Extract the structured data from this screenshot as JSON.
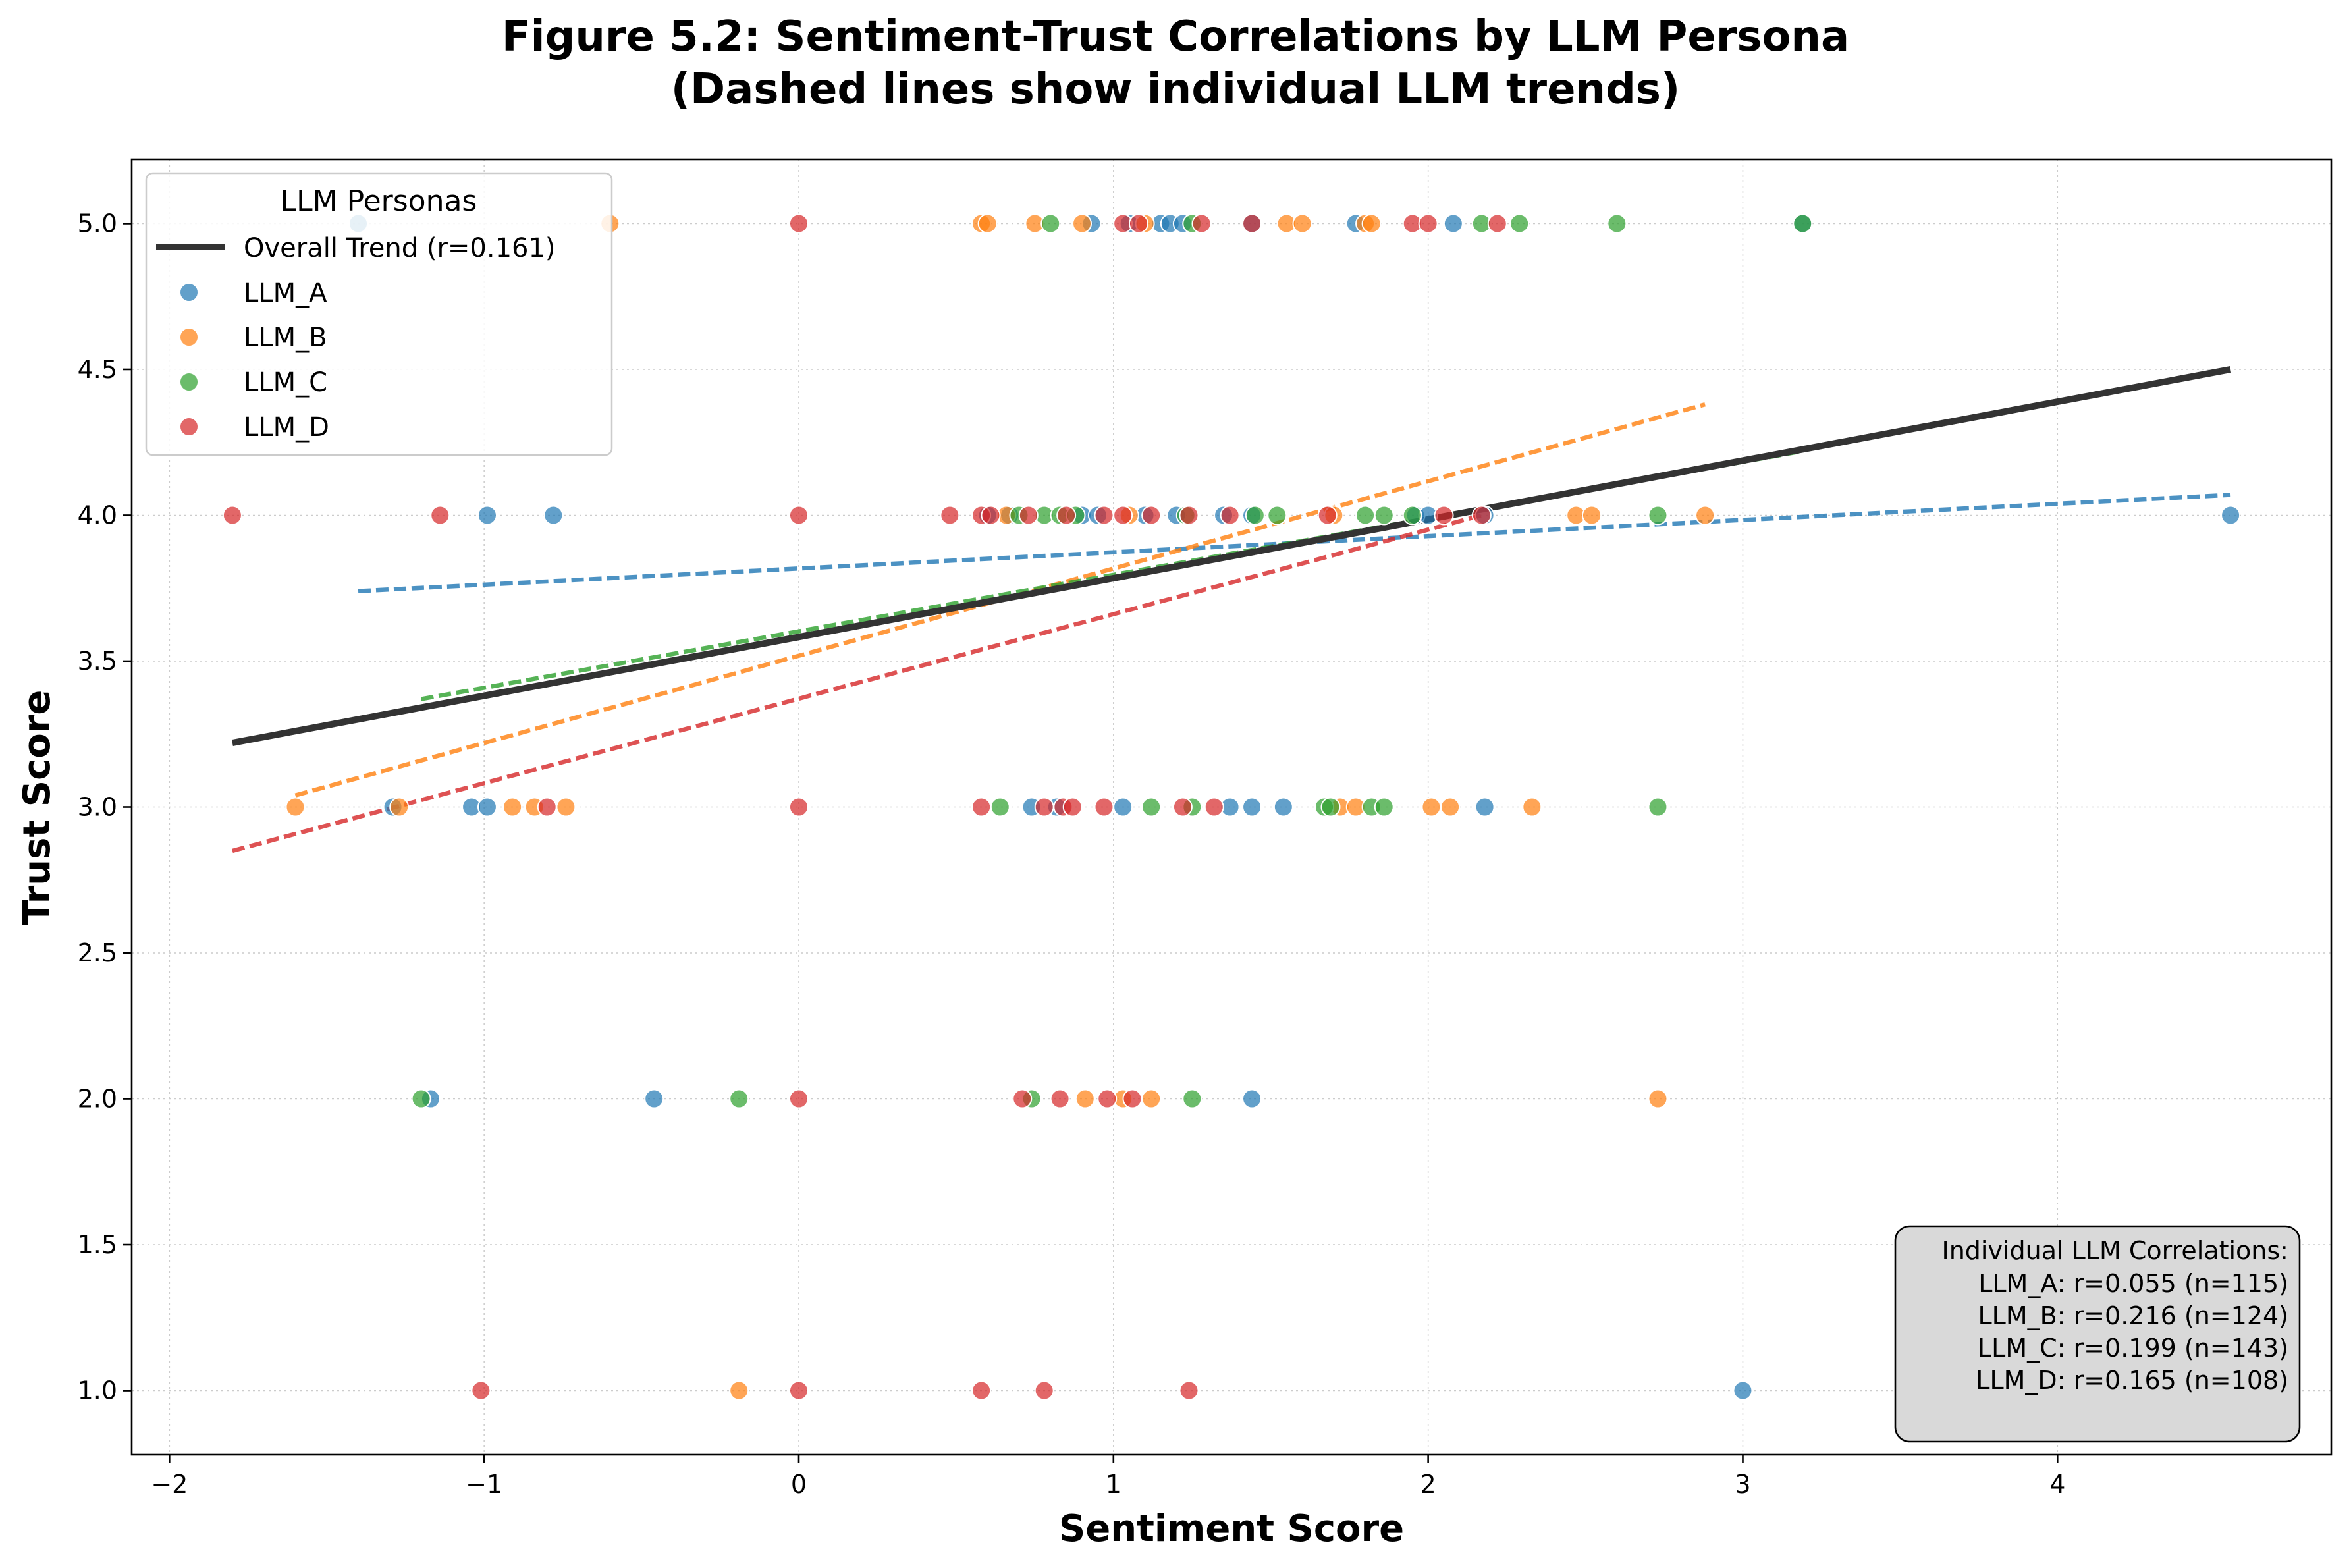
{
  "chart_data": {
    "type": "scatter",
    "title": "Figure 5.2: Sentiment-Trust Correlations by LLM Persona",
    "subtitle": "(Dashed lines show individual LLM trends)",
    "xlabel": "Sentiment Score",
    "ylabel": "Trust Score",
    "xlim": [
      -2.12,
      4.87
    ],
    "ylim": [
      0.78,
      5.22
    ],
    "xticks": [
      -2,
      -1,
      0,
      1,
      2,
      3,
      4
    ],
    "xtick_labels": [
      "−2",
      "−1",
      "0",
      "1",
      "2",
      "3",
      "4"
    ],
    "yticks": [
      1.0,
      1.5,
      2.0,
      2.5,
      3.0,
      3.5,
      4.0,
      4.5,
      5.0
    ],
    "ytick_labels": [
      "1.0",
      "1.5",
      "2.0",
      "2.5",
      "3.0",
      "3.5",
      "4.0",
      "4.5",
      "5.0"
    ],
    "grid": true,
    "legend": {
      "title": "LLM Personas",
      "placement": "upper-left",
      "overall_label": "Overall Trend (r=0.161)"
    },
    "overall_trend": {
      "color": "#333333",
      "x": [
        -1.8,
        4.55
      ],
      "y": [
        3.22,
        4.5
      ]
    },
    "series": [
      {
        "name": "LLM_A",
        "color": "#1f77b4",
        "trend": {
          "x": [
            -1.4,
            4.55
          ],
          "y": [
            3.74,
            4.07
          ]
        },
        "points": [
          [
            -1.4,
            5.0
          ],
          [
            0.93,
            5.0
          ],
          [
            1.05,
            5.0
          ],
          [
            1.15,
            5.0
          ],
          [
            1.18,
            5.0
          ],
          [
            1.22,
            5.0
          ],
          [
            1.44,
            5.0
          ],
          [
            1.77,
            5.0
          ],
          [
            2.08,
            5.0
          ],
          [
            3.19,
            5.0
          ],
          [
            -0.99,
            4.0
          ],
          [
            -0.78,
            4.0
          ],
          [
            0.6,
            4.0
          ],
          [
            0.67,
            4.0
          ],
          [
            0.9,
            4.0
          ],
          [
            0.95,
            4.0
          ],
          [
            1.1,
            4.0
          ],
          [
            1.2,
            4.0
          ],
          [
            1.35,
            4.0
          ],
          [
            1.44,
            4.0
          ],
          [
            1.96,
            4.0
          ],
          [
            2.0,
            4.0
          ],
          [
            2.18,
            4.0
          ],
          [
            4.55,
            4.0
          ],
          [
            -1.29,
            3.0
          ],
          [
            -1.04,
            3.0
          ],
          [
            -0.99,
            3.0
          ],
          [
            0.74,
            3.0
          ],
          [
            0.82,
            3.0
          ],
          [
            1.03,
            3.0
          ],
          [
            1.37,
            3.0
          ],
          [
            1.44,
            3.0
          ],
          [
            1.54,
            3.0
          ],
          [
            2.18,
            3.0
          ],
          [
            -1.17,
            2.0
          ],
          [
            -0.46,
            2.0
          ],
          [
            1.44,
            2.0
          ],
          [
            3.0,
            1.0
          ]
        ]
      },
      {
        "name": "LLM_B",
        "color": "#ff7f0e",
        "trend": {
          "x": [
            -1.6,
            2.88
          ],
          "y": [
            3.04,
            4.38
          ]
        },
        "points": [
          [
            -0.6,
            5.0
          ],
          [
            0.58,
            5.0
          ],
          [
            0.6,
            5.0
          ],
          [
            0.75,
            5.0
          ],
          [
            0.9,
            5.0
          ],
          [
            1.1,
            5.0
          ],
          [
            1.55,
            5.0
          ],
          [
            1.6,
            5.0
          ],
          [
            1.8,
            5.0
          ],
          [
            1.82,
            5.0
          ],
          [
            0.66,
            4.0
          ],
          [
            1.05,
            4.0
          ],
          [
            1.7,
            4.0
          ],
          [
            2.47,
            4.0
          ],
          [
            2.52,
            4.0
          ],
          [
            2.88,
            4.0
          ],
          [
            -1.6,
            3.0
          ],
          [
            -1.27,
            3.0
          ],
          [
            -0.91,
            3.0
          ],
          [
            -0.84,
            3.0
          ],
          [
            -0.74,
            3.0
          ],
          [
            1.72,
            3.0
          ],
          [
            1.77,
            3.0
          ],
          [
            2.01,
            3.0
          ],
          [
            2.07,
            3.0
          ],
          [
            2.33,
            3.0
          ],
          [
            0.91,
            2.0
          ],
          [
            1.03,
            2.0
          ],
          [
            1.12,
            2.0
          ],
          [
            2.73,
            2.0
          ],
          [
            -0.19,
            1.0
          ]
        ]
      },
      {
        "name": "LLM_C",
        "color": "#2ca02c",
        "trend": {
          "x": [
            -1.2,
            3.19
          ],
          "y": [
            3.37,
            4.22
          ]
        },
        "points": [
          [
            0.8,
            5.0
          ],
          [
            1.25,
            5.0
          ],
          [
            2.17,
            5.0
          ],
          [
            2.29,
            5.0
          ],
          [
            2.6,
            5.0
          ],
          [
            3.19,
            5.0
          ],
          [
            0.7,
            4.0
          ],
          [
            0.78,
            4.0
          ],
          [
            0.83,
            4.0
          ],
          [
            0.88,
            4.0
          ],
          [
            1.23,
            4.0
          ],
          [
            1.45,
            4.0
          ],
          [
            1.52,
            4.0
          ],
          [
            1.8,
            4.0
          ],
          [
            1.86,
            4.0
          ],
          [
            1.95,
            4.0
          ],
          [
            2.73,
            4.0
          ],
          [
            0.64,
            3.0
          ],
          [
            1.12,
            3.0
          ],
          [
            1.25,
            3.0
          ],
          [
            1.67,
            3.0
          ],
          [
            1.69,
            3.0
          ],
          [
            1.82,
            3.0
          ],
          [
            1.86,
            3.0
          ],
          [
            2.73,
            3.0
          ],
          [
            -1.2,
            2.0
          ],
          [
            -0.19,
            2.0
          ],
          [
            0.74,
            2.0
          ],
          [
            1.25,
            2.0
          ]
        ]
      },
      {
        "name": "LLM_D",
        "color": "#d62728",
        "trend": {
          "x": [
            -1.8,
            2.17
          ],
          "y": [
            2.85,
            4.0
          ]
        },
        "points": [
          [
            0.0,
            5.0
          ],
          [
            1.03,
            5.0
          ],
          [
            1.08,
            5.0
          ],
          [
            1.28,
            5.0
          ],
          [
            1.44,
            5.0
          ],
          [
            1.95,
            5.0
          ],
          [
            2.0,
            5.0
          ],
          [
            2.22,
            5.0
          ],
          [
            -1.8,
            4.0
          ],
          [
            -1.14,
            4.0
          ],
          [
            0.0,
            4.0
          ],
          [
            0.48,
            4.0
          ],
          [
            0.58,
            4.0
          ],
          [
            0.61,
            4.0
          ],
          [
            0.73,
            4.0
          ],
          [
            0.85,
            4.0
          ],
          [
            0.97,
            4.0
          ],
          [
            1.03,
            4.0
          ],
          [
            1.12,
            4.0
          ],
          [
            1.24,
            4.0
          ],
          [
            1.37,
            4.0
          ],
          [
            1.68,
            4.0
          ],
          [
            2.05,
            4.0
          ],
          [
            2.17,
            4.0
          ],
          [
            -0.8,
            3.0
          ],
          [
            0.0,
            3.0
          ],
          [
            0.58,
            3.0
          ],
          [
            0.78,
            3.0
          ],
          [
            0.84,
            3.0
          ],
          [
            0.87,
            3.0
          ],
          [
            0.97,
            3.0
          ],
          [
            1.22,
            3.0
          ],
          [
            1.32,
            3.0
          ],
          [
            0.0,
            2.0
          ],
          [
            0.71,
            2.0
          ],
          [
            0.83,
            2.0
          ],
          [
            0.98,
            2.0
          ],
          [
            1.06,
            2.0
          ],
          [
            -1.01,
            1.0
          ],
          [
            0.0,
            1.0
          ],
          [
            0.58,
            1.0
          ],
          [
            0.78,
            1.0
          ],
          [
            1.24,
            1.0
          ]
        ]
      }
    ],
    "annotation": {
      "title": "Individual LLM Correlations:",
      "lines": [
        "LLM_A: r=0.055 (n=115)",
        "LLM_B: r=0.216 (n=124)",
        "LLM_C: r=0.199 (n=143)",
        "LLM_D: r=0.165 (n=108)"
      ]
    }
  }
}
